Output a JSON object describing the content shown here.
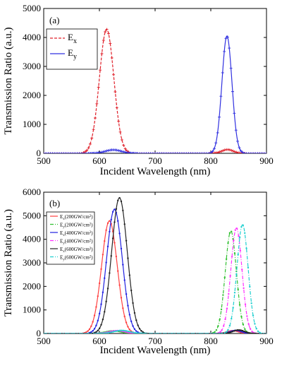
{
  "chart_data": [
    {
      "type": "line",
      "panel_label": "(a)",
      "xlabel": "Incident Wavelength (nm)",
      "ylabel": "Transmission Ratio (a.u.)",
      "xlim": [
        500,
        900
      ],
      "ylim": [
        0,
        5000
      ],
      "xticks": [
        500,
        600,
        700,
        800,
        900
      ],
      "yticks": [
        0,
        1000,
        2000,
        3000,
        4000,
        5000
      ],
      "grid": false,
      "legend_position": "top-left",
      "series": [
        {
          "name": "Ex",
          "legend_main": "E",
          "legend_sub": "x",
          "color": "#e0202a",
          "style": "dashed",
          "marker": "plus",
          "peaks": [
            {
              "center": 613,
              "height": 4280,
              "width": 13
            },
            {
              "center": 830,
              "height": 130,
              "width": 10
            }
          ]
        },
        {
          "name": "Ey",
          "legend_main": "E",
          "legend_sub": "y",
          "color": "#3030e0",
          "style": "solid",
          "marker": "plus",
          "peaks": [
            {
              "center": 625,
              "height": 120,
              "width": 14
            },
            {
              "center": 829,
              "height": 4050,
              "width": 9
            }
          ]
        }
      ]
    },
    {
      "type": "line",
      "panel_label": "(b)",
      "xlabel": "Incident Wavelength (nm)",
      "ylabel": "Transmission Ratio (a.u.)",
      "xlim": [
        500,
        900
      ],
      "ylim": [
        0,
        6000
      ],
      "xticks": [
        500,
        600,
        700,
        800,
        900
      ],
      "yticks": [
        0,
        1000,
        2000,
        3000,
        4000,
        5000,
        6000
      ],
      "grid": false,
      "legend_position": "top-left",
      "series": [
        {
          "name": "Ex(200GW/cm2)",
          "legend_main": "E",
          "legend_sub": "x",
          "legend_tail": "(200GW/cm",
          "color": "#ff4040",
          "style": "solid",
          "peaks": [
            {
              "center": 618,
              "height": 4780,
              "width": 14
            },
            {
              "center": 840,
              "height": 120,
              "width": 10
            }
          ]
        },
        {
          "name": "Ey(200GW/cm2)",
          "legend_main": "E",
          "legend_sub": "y",
          "legend_tail": "(200GW/cm",
          "color": "#30c030",
          "style": "dashdot",
          "peaks": [
            {
              "center": 625,
              "height": 110,
              "width": 14
            },
            {
              "center": 836,
              "height": 4350,
              "width": 10
            }
          ]
        },
        {
          "name": "Ex(400GW/cm2)",
          "legend_main": "E",
          "legend_sub": "x",
          "legend_tail": "(400GW/cm",
          "color": "#2020e0",
          "style": "solid",
          "peaks": [
            {
              "center": 627,
              "height": 5270,
              "width": 14
            },
            {
              "center": 845,
              "height": 130,
              "width": 10
            }
          ]
        },
        {
          "name": "Ey(400GW/cm2)",
          "legend_main": "E",
          "legend_sub": "y",
          "legend_tail": "(400GW/cm",
          "color": "#ff30ff",
          "style": "dashdot",
          "peaks": [
            {
              "center": 632,
              "height": 120,
              "width": 14
            },
            {
              "center": 846,
              "height": 4480,
              "width": 10
            }
          ]
        },
        {
          "name": "Ex(600GW/cm2)",
          "legend_main": "E",
          "legend_sub": "x",
          "legend_tail": "(600GW/cm",
          "color": "#222222",
          "style": "solid",
          "peaks": [
            {
              "center": 636,
              "height": 5760,
              "width": 14
            },
            {
              "center": 850,
              "height": 150,
              "width": 10
            }
          ]
        },
        {
          "name": "Ey(600GW/cm2)",
          "legend_main": "E",
          "legend_sub": "y",
          "legend_tail": "(600GW/cm",
          "color": "#20d0d0",
          "style": "dashdot",
          "peaks": [
            {
              "center": 640,
              "height": 130,
              "width": 14
            },
            {
              "center": 857,
              "height": 4620,
              "width": 10
            }
          ]
        }
      ]
    }
  ]
}
